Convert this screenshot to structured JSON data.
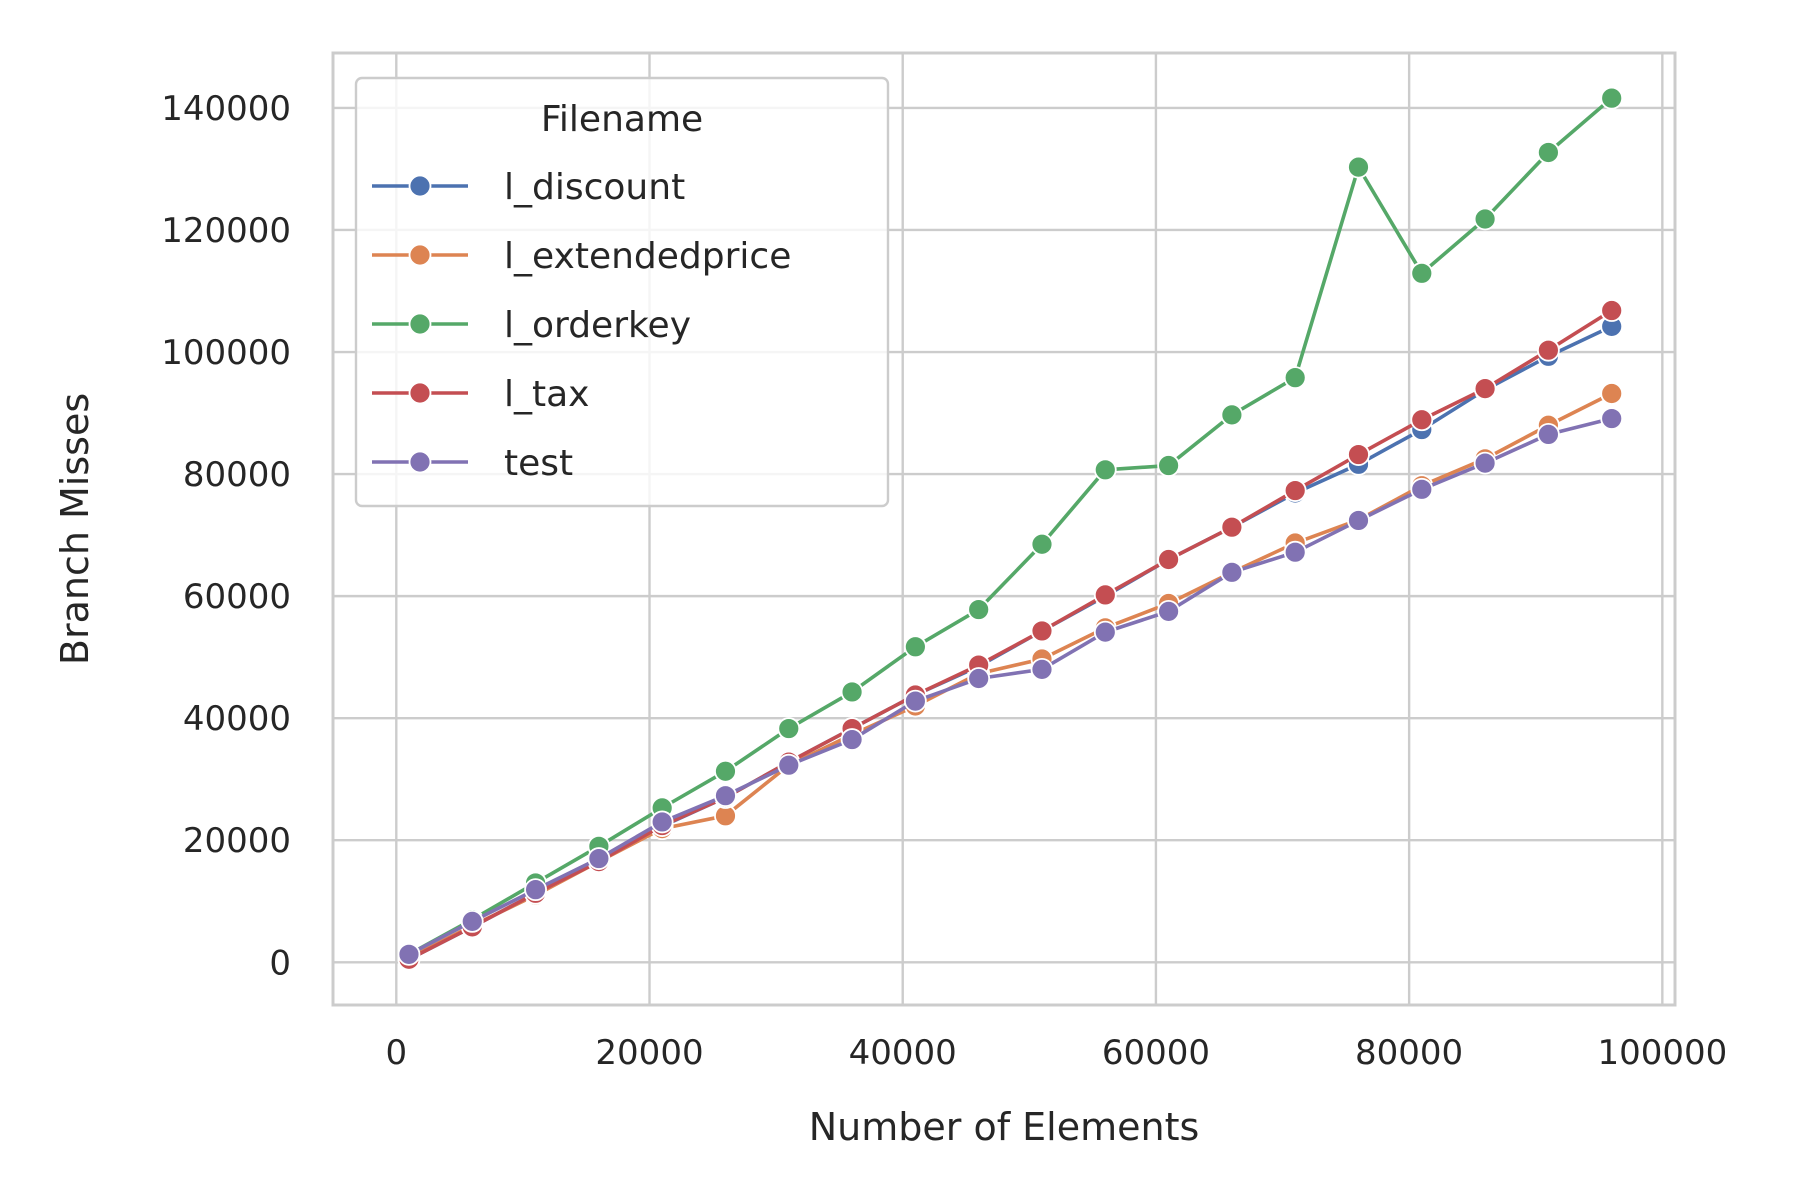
{
  "chart_data": {
    "type": "line",
    "xlabel": "Number of Elements",
    "ylabel": "Branch Misses",
    "xlim": [
      -5000,
      101000
    ],
    "ylim": [
      -7000,
      149000
    ],
    "xticks": [
      0,
      20000,
      40000,
      60000,
      80000,
      100000
    ],
    "yticks": [
      0,
      20000,
      40000,
      60000,
      80000,
      100000,
      120000,
      140000
    ],
    "grid": true,
    "legend": {
      "title": "Filename",
      "placement": "top-left"
    },
    "x": [
      1000,
      6000,
      11000,
      16000,
      21000,
      26000,
      31000,
      36000,
      41000,
      46000,
      51000,
      56000,
      61000,
      66000,
      71000,
      76000,
      81000,
      86000,
      91000,
      96000
    ],
    "series": [
      {
        "name": "l_discount",
        "color": "#4c72b0",
        "values": [
          500,
          5800,
          11300,
          16500,
          22300,
          27000,
          32800,
          38300,
          43800,
          48500,
          54300,
          60000,
          66000,
          71300,
          76900,
          81600,
          87300,
          93800,
          99300,
          104200
        ]
      },
      {
        "name": "l_extendedprice",
        "color": "#dd8452",
        "values": [
          700,
          6000,
          11000,
          16500,
          21900,
          24000,
          32300,
          37300,
          42000,
          47300,
          49700,
          54800,
          58800,
          63900,
          68700,
          72500,
          78100,
          82500,
          88000,
          93200
        ]
      },
      {
        "name": "l_orderkey",
        "color": "#55a868",
        "values": [
          1300,
          7000,
          13000,
          19000,
          25300,
          31300,
          38300,
          44300,
          51700,
          57800,
          68500,
          80700,
          81400,
          89700,
          95800,
          130300,
          112900,
          121800,
          132700,
          141600
        ]
      },
      {
        "name": "l_tax",
        "color": "#c44e52",
        "values": [
          500,
          5800,
          11300,
          16500,
          22400,
          27000,
          32800,
          38300,
          43800,
          48700,
          54300,
          60200,
          66000,
          71300,
          77300,
          83200,
          88900,
          94000,
          100300,
          106800
        ]
      },
      {
        "name": "test",
        "color": "#8172b3",
        "values": [
          1300,
          6700,
          11900,
          17000,
          23000,
          27300,
          32300,
          36500,
          42800,
          46500,
          48000,
          54100,
          57500,
          63900,
          67200,
          72400,
          77500,
          81800,
          86500,
          89100
        ]
      }
    ]
  }
}
